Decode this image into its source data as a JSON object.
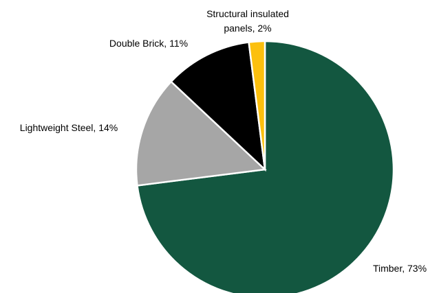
{
  "chart_data": {
    "type": "pie",
    "title": "",
    "categories": [
      "Timber",
      "Lightweight Steel",
      "Double Brick",
      "Structural insulated panels"
    ],
    "values": [
      73,
      14,
      11,
      2
    ],
    "unit": "%",
    "colors": [
      "#135740",
      "#a6a6a6",
      "#000000",
      "#fcc00e"
    ],
    "data_labels": [
      {
        "lines": [
          "Timber, 73%"
        ]
      },
      {
        "lines": [
          "Lightweight Steel, 14%"
        ]
      },
      {
        "lines": [
          "Double Brick, 11%"
        ]
      },
      {
        "lines": [
          "Structural insulated",
          "panels, 2%"
        ]
      }
    ],
    "start_angle_deg": 0,
    "direction": "clockwise",
    "legend": "none"
  }
}
